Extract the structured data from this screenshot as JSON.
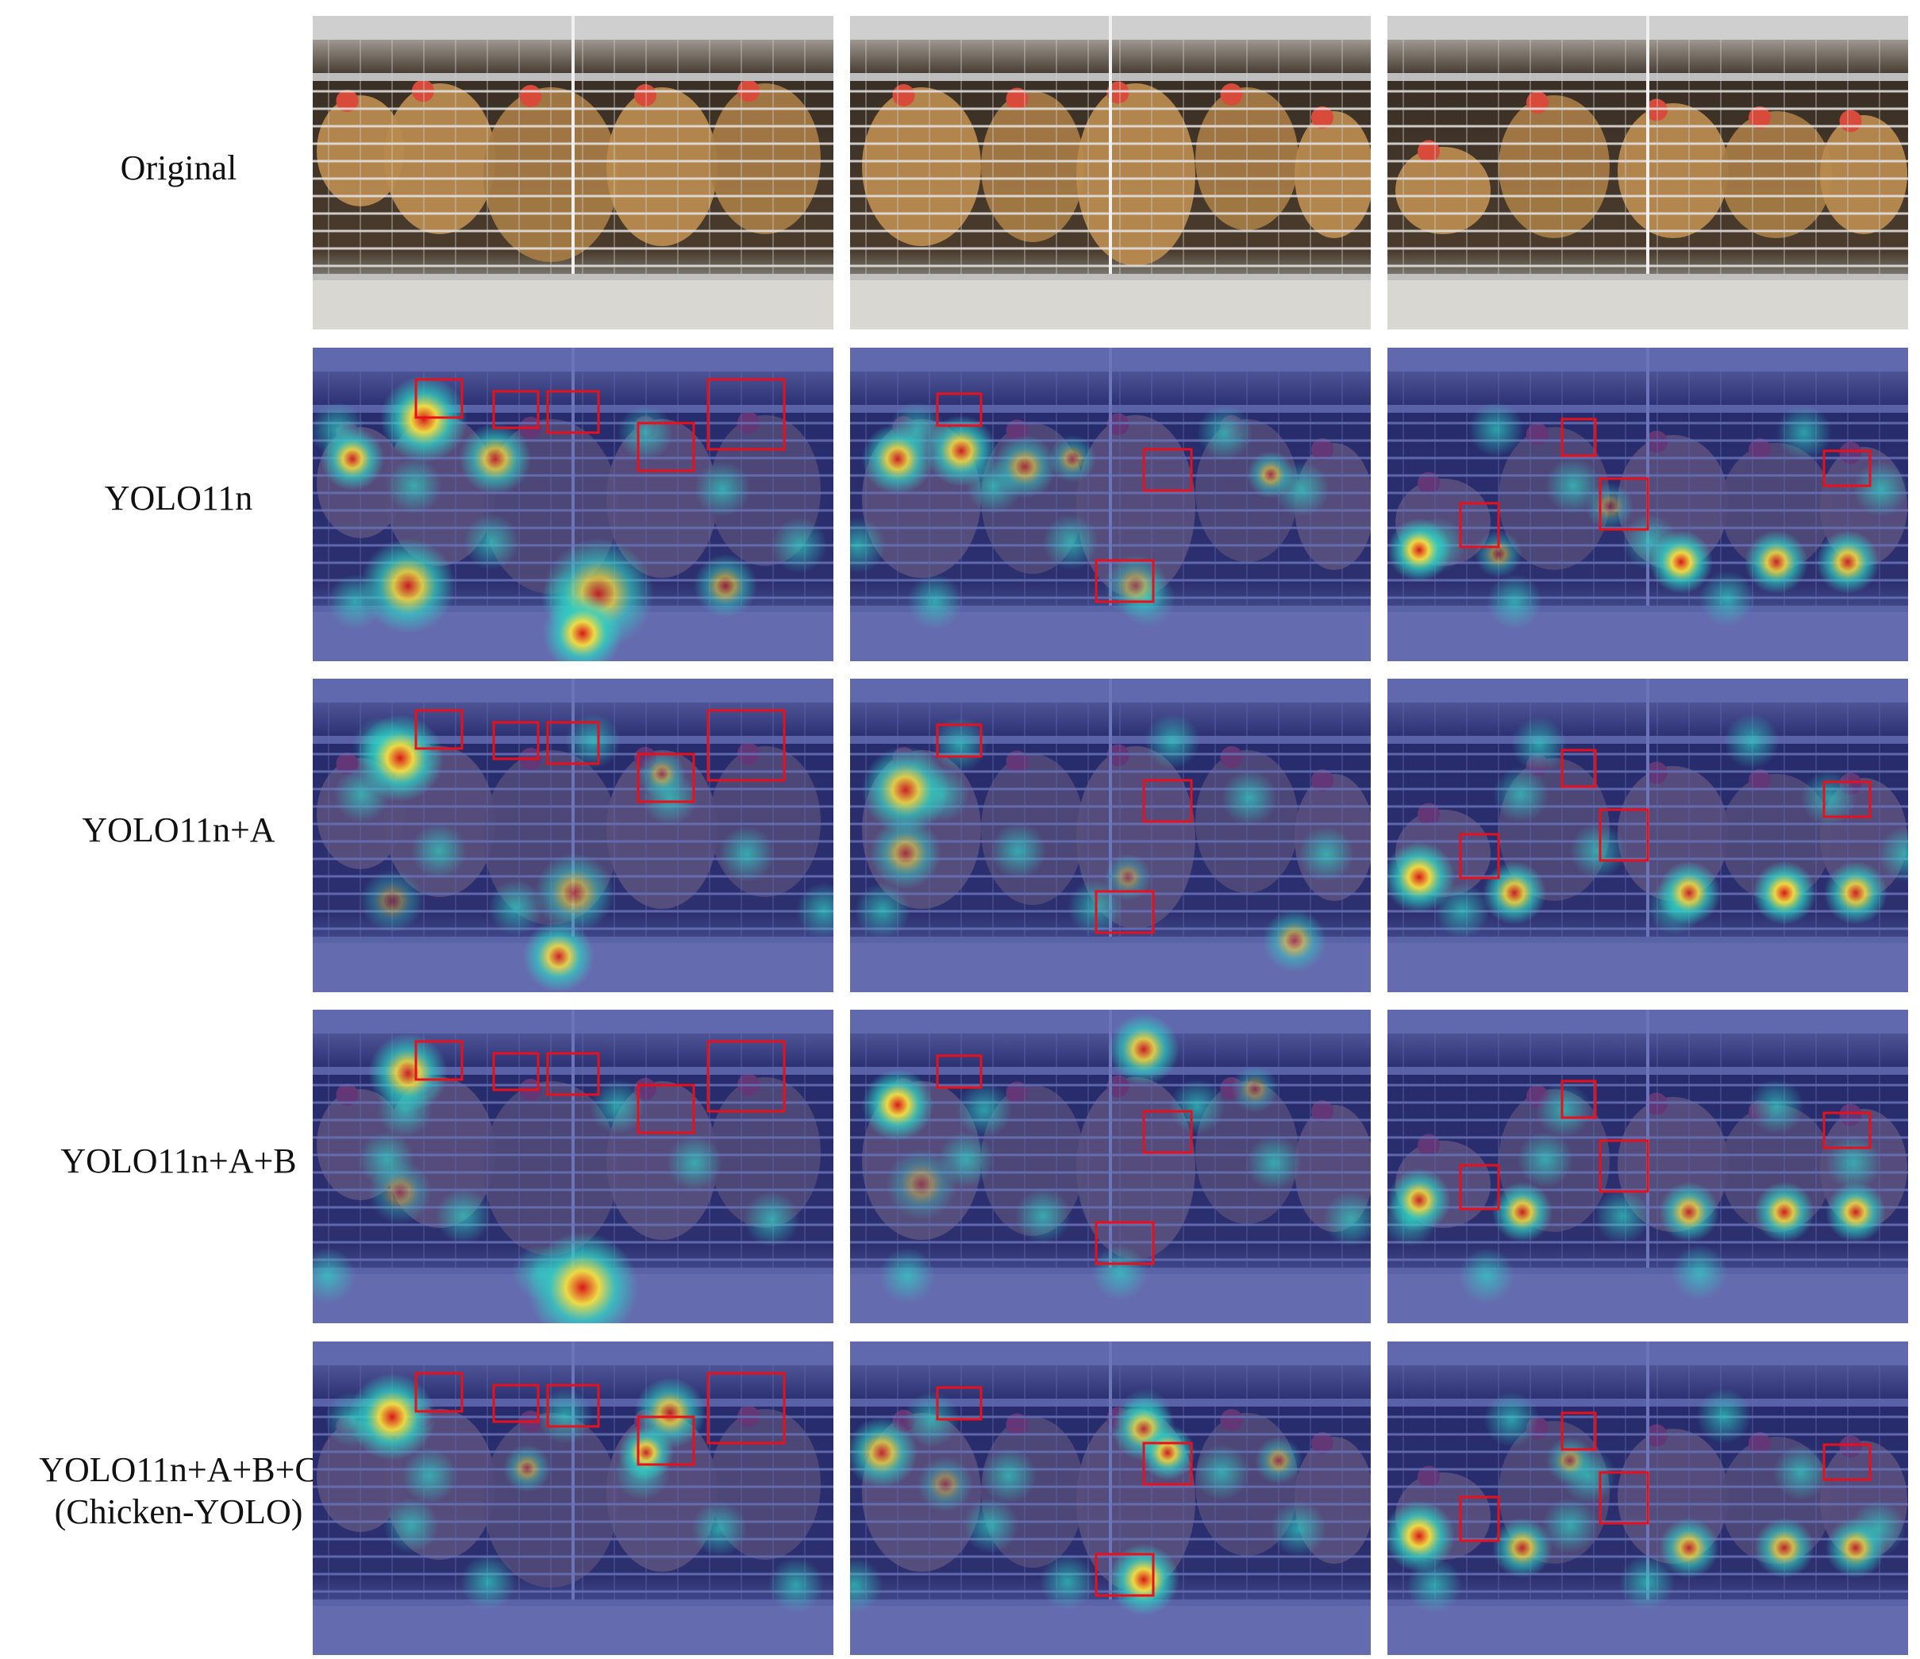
{
  "row_labels": [
    {
      "line1": "Original",
      "line2": ""
    },
    {
      "line1": "YOLO11n",
      "line2": ""
    },
    {
      "line1": "YOLO11n+A",
      "line2": ""
    },
    {
      "line1": "YOLO11n+A+B",
      "line2": ""
    },
    {
      "line1": "YOLO11n+A+B+C",
      "line2": "(Chicken-YOLO)"
    }
  ],
  "colors": {
    "detection_box": "#e8101a",
    "heat_low": "#1c2a9a",
    "heat_mid": "#2fd2c4",
    "heat_high": "#f5e040",
    "heat_peak": "#d81818",
    "photo_bg": "#4a3b2c",
    "cage_frame": "#cfcfcf",
    "hen": "#b88a4e"
  },
  "columns": [
    "cage-scene-1",
    "cage-scene-2",
    "cage-scene-3"
  ]
}
